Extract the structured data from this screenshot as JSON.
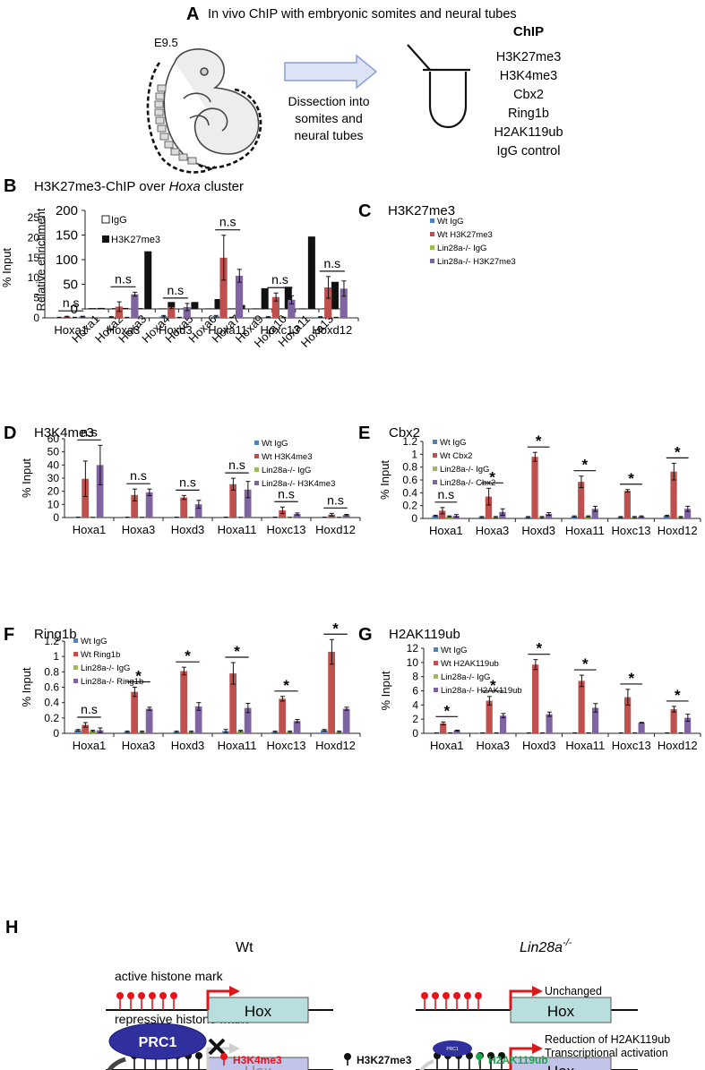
{
  "colors": {
    "wt_igg": "#4f81bd",
    "wt_mark": "#c0504d",
    "ko_igg": "#9bbb59",
    "ko_mark": "#8064a2",
    "h3k4me3": "#e8141b",
    "h3k27me3": "#111111",
    "h2ak119ub": "#1aa64b",
    "hox_active": "#b9dede",
    "hox_repressed": "#c3c4ea",
    "prc1": "#2f2f9e",
    "arrow_red": "#d7191c",
    "arrow_gray": "#555555"
  },
  "panelA": {
    "letter": "A",
    "title": "In vivo ChIP with embryonic somites and neural tubes",
    "stage": "E9.5",
    "dissection": [
      "Dissection into",
      "somites and",
      "neural tubes"
    ],
    "chip_header": "ChIP",
    "chip_list": [
      "H3K27me3",
      "H3K4me3",
      "Cbx2",
      "Ring1b",
      "H2AK119ub",
      "IgG control"
    ]
  },
  "chart_data": [
    {
      "id": "B",
      "type": "bar",
      "title_prefix": "H3K27me3-ChIP over ",
      "title_italic": "Hoxa",
      "title_suffix": " cluster",
      "ylabel": "Relative enrichment",
      "ylim": [
        0,
        200
      ],
      "yticks": [
        "0",
        "50",
        "100",
        "150",
        "200"
      ],
      "categories": [
        "Hoxa1",
        "Hoxa2",
        "Hoxa3",
        "Hoxa4",
        "Hoxa5",
        "Hoxa6",
        "Hoxa7",
        "Hoxa9",
        "Hoxa10",
        "Hoxa11",
        "Hoxa13"
      ],
      "series": [
        {
          "name": "IgG",
          "values": [
            1,
            1,
            1,
            0.5,
            0.5,
            0.5,
            0.5,
            0.5,
            0.5,
            0.5,
            0.5
          ]
        },
        {
          "name": "H3K27me3",
          "values": [
            2,
            2,
            117,
            14,
            14,
            20,
            8,
            42,
            45,
            147,
            55
          ]
        }
      ]
    },
    {
      "id": "C",
      "type": "bar",
      "title": "H3K27me3",
      "ylabel": "% Input",
      "ylim": [
        0,
        25
      ],
      "yticks": [
        "0",
        "5",
        "10",
        "15",
        "20",
        "25"
      ],
      "categories": [
        "Hoxa1",
        "Hoxa3",
        "Hoxd3",
        "Hoxa11",
        "Hoxc13",
        "Hoxd12"
      ],
      "series": [
        {
          "name": "Wt IgG",
          "values": [
            0.1,
            0.2,
            0.4,
            0.4,
            0.2,
            0.2
          ],
          "errors": [
            0.05,
            0.1,
            0.2,
            0.2,
            0.1,
            0.1
          ]
        },
        {
          "name": "Wt H3K27me3",
          "values": [
            0.3,
            2.8,
            2.7,
            15.0,
            5.2,
            7.6
          ],
          "errors": [
            0.1,
            1.2,
            0.4,
            5.6,
            1.0,
            2.7
          ]
        },
        {
          "name": "Lin28a-/- IgG",
          "values": [
            0.1,
            0.1,
            0.1,
            0.1,
            0.1,
            0.1
          ],
          "errors": [
            0.05,
            0.05,
            0.05,
            0.05,
            0.05,
            0.05
          ]
        },
        {
          "name": "Lin28a-/- H3K27me3",
          "values": [
            0.3,
            5.9,
            2.7,
            10.5,
            4.5,
            7.3
          ],
          "errors": [
            0.1,
            0.5,
            0.9,
            1.6,
            1.0,
            1.9
          ]
        }
      ],
      "annotations": [
        "n.s",
        "n.s",
        "n.s",
        "n.s",
        "n.s",
        "n.s"
      ]
    },
    {
      "id": "D",
      "type": "bar",
      "title": "H3K4me3",
      "ylabel": "% Input",
      "ylim": [
        0,
        60
      ],
      "yticks": [
        "0",
        "10",
        "20",
        "30",
        "40",
        "50",
        "60"
      ],
      "categories": [
        "Hoxa1",
        "Hoxa3",
        "Hoxd3",
        "Hoxa11",
        "Hoxc13",
        "Hoxd12"
      ],
      "series": [
        {
          "name": "Wt IgG",
          "values": [
            0.2,
            0.2,
            0.2,
            0.2,
            0.2,
            0.2
          ],
          "errors": [
            0.1,
            0.1,
            0.1,
            0.1,
            0.1,
            0.1
          ]
        },
        {
          "name": "Wt H3K4me3",
          "values": [
            29.5,
            17.2,
            15.3,
            25.4,
            5.5,
            2.2
          ],
          "errors": [
            13.5,
            4.5,
            1.5,
            4.5,
            2.5,
            1.0
          ]
        },
        {
          "name": "Lin28a-/- IgG",
          "values": [
            0.1,
            0.1,
            0.1,
            0.1,
            0.1,
            0.1
          ],
          "errors": [
            0.05,
            0.05,
            0.05,
            0.05,
            0.05,
            0.05
          ]
        },
        {
          "name": "Lin28a-/- H3K4me3",
          "values": [
            40.0,
            19.2,
            10.1,
            21.3,
            2.7,
            1.9
          ],
          "errors": [
            15.0,
            2.5,
            3.0,
            6.2,
            0.8,
            0.5
          ]
        }
      ],
      "annotations": [
        "n.s",
        "n.s",
        "n.s",
        "n.s",
        "n.s",
        "n.s"
      ]
    },
    {
      "id": "E",
      "type": "bar",
      "title": "Cbx2",
      "ylabel": "% Input",
      "ylim": [
        0,
        1.2
      ],
      "yticks": [
        "0",
        "0.2",
        "0.4",
        "0.6",
        "0.8",
        "1",
        "1.2"
      ],
      "categories": [
        "Hoxa1",
        "Hoxa3",
        "Hoxd3",
        "Hoxa11",
        "Hoxc13",
        "Hoxd12"
      ],
      "series": [
        {
          "name": "Wt IgG",
          "values": [
            0.04,
            0.02,
            0.02,
            0.03,
            0.02,
            0.04
          ],
          "errors": [
            0.01,
            0.01,
            0.01,
            0.01,
            0.01,
            0.01
          ]
        },
        {
          "name": "Wt Cbx2",
          "values": [
            0.12,
            0.34,
            0.96,
            0.57,
            0.43,
            0.73
          ],
          "errors": [
            0.05,
            0.13,
            0.07,
            0.09,
            0.02,
            0.13
          ]
        },
        {
          "name": "Lin28a-/- IgG",
          "values": [
            0.03,
            0.02,
            0.02,
            0.03,
            0.02,
            0.02
          ],
          "errors": [
            0.01,
            0.01,
            0.01,
            0.01,
            0.01,
            0.01
          ]
        },
        {
          "name": "Lin28a-/- Cbx2",
          "values": [
            0.04,
            0.1,
            0.07,
            0.15,
            0.03,
            0.15
          ],
          "errors": [
            0.02,
            0.05,
            0.02,
            0.04,
            0.01,
            0.04
          ]
        }
      ],
      "annotations": [
        "n.s",
        "*",
        "*",
        "*",
        "*",
        "*"
      ]
    },
    {
      "id": "F",
      "type": "bar",
      "title": "Ring1b",
      "ylabel": "% Input",
      "ylim": [
        0,
        1.2
      ],
      "yticks": [
        "0",
        "0.2",
        "0.4",
        "0.6",
        "0.8",
        "1",
        "1.2"
      ],
      "categories": [
        "Hoxa1",
        "Hoxa3",
        "Hoxd3",
        "Hoxa11",
        "Hoxc13",
        "Hoxd12"
      ],
      "series": [
        {
          "name": "Wt IgG",
          "values": [
            0.04,
            0.02,
            0.02,
            0.03,
            0.02,
            0.04
          ],
          "errors": [
            0.01,
            0.01,
            0.01,
            0.02,
            0.01,
            0.01
          ]
        },
        {
          "name": "Wt Ring1b",
          "values": [
            0.11,
            0.54,
            0.81,
            0.78,
            0.45,
            1.06
          ],
          "errors": [
            0.03,
            0.06,
            0.05,
            0.14,
            0.03,
            0.16
          ]
        },
        {
          "name": "Lin28a-/- IgG",
          "values": [
            0.03,
            0.02,
            0.02,
            0.03,
            0.02,
            0.02
          ],
          "errors": [
            0.01,
            0.01,
            0.01,
            0.01,
            0.01,
            0.01
          ]
        },
        {
          "name": "Lin28a-/- Ring1b",
          "values": [
            0.04,
            0.32,
            0.35,
            0.33,
            0.16,
            0.32
          ],
          "errors": [
            0.03,
            0.02,
            0.05,
            0.06,
            0.02,
            0.02
          ]
        }
      ],
      "annotations": [
        "n.s",
        "*",
        "*",
        "*",
        "*",
        "*"
      ]
    },
    {
      "id": "G",
      "type": "bar",
      "title": "H2AK119ub",
      "ylabel": "% Input",
      "ylim": [
        0,
        12
      ],
      "yticks": [
        "0",
        "2",
        "4",
        "6",
        "8",
        "10",
        "12"
      ],
      "categories": [
        "Hoxa1",
        "Hoxa3",
        "Hoxd3",
        "Hoxa11",
        "Hoxc13",
        "Hoxd12"
      ],
      "series": [
        {
          "name": "Wt IgG",
          "values": [
            0.05,
            0.05,
            0.05,
            0.05,
            0.05,
            0.05
          ],
          "errors": [
            0.02,
            0.02,
            0.02,
            0.02,
            0.02,
            0.02
          ]
        },
        {
          "name": "Wt H2AK119ub",
          "values": [
            1.4,
            4.6,
            9.7,
            7.4,
            5.1,
            3.4
          ],
          "errors": [
            0.2,
            0.6,
            0.7,
            0.8,
            1.1,
            0.4
          ]
        },
        {
          "name": "Lin28a-/- IgG",
          "values": [
            0.05,
            0.05,
            0.05,
            0.05,
            0.05,
            0.05
          ],
          "errors": [
            0.02,
            0.02,
            0.02,
            0.02,
            0.02,
            0.02
          ]
        },
        {
          "name": "Lin28a-/- H2AK119ub",
          "values": [
            0.4,
            2.5,
            2.7,
            3.6,
            1.5,
            2.2
          ],
          "errors": [
            0.05,
            0.3,
            0.3,
            0.6,
            0.05,
            0.5
          ]
        }
      ],
      "annotations": [
        "*",
        "*",
        "*",
        "*",
        "*",
        "*"
      ]
    }
  ],
  "panelH": {
    "letter": "H",
    "wt_title": "Wt",
    "ko_title_base": "Lin28a",
    "ko_title_sup": "-/-",
    "active_label": "active histone mark",
    "repressive_label": "repressive histone mark",
    "hox_label": "Hox",
    "unchanged_label": "Unchanged",
    "prc1_label": "PRC1",
    "prc1_small_label": "PRC1",
    "reduction_label": "Reduction of H2AK119ub",
    "activation_label": "Transcriptional activation",
    "legend": [
      "H3K4me3",
      "H3K27me3",
      "H2AK119ub"
    ]
  }
}
